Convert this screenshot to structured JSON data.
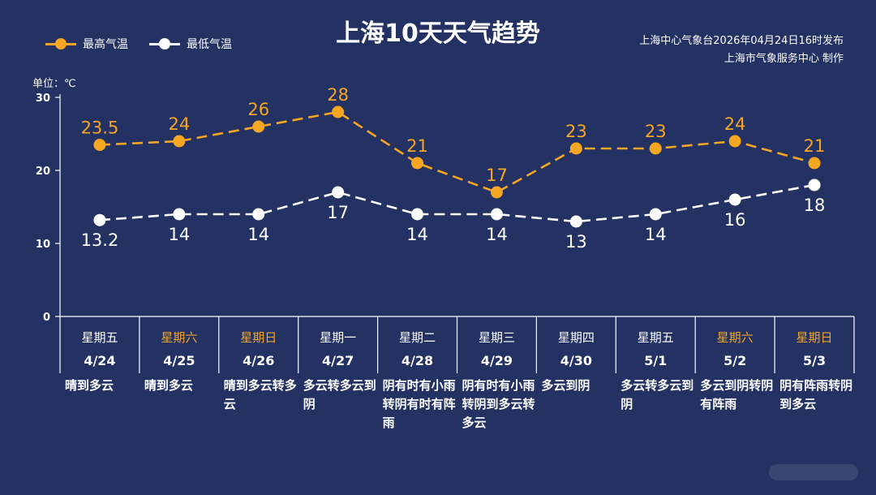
{
  "chart_data": {
    "type": "line",
    "title": "上海10天天气趋势",
    "unit_label": "单位：℃",
    "source_lines": [
      "上海中心气象台2026年04月24日16时发布",
      "上海市气象服务中心  制作"
    ],
    "ylim": [
      0,
      30
    ],
    "yticks": [
      0,
      10,
      20,
      30
    ],
    "weekdays": [
      "星期五",
      "星期六",
      "星期日",
      "星期一",
      "星期二",
      "星期三",
      "星期四",
      "星期五",
      "星期六",
      "星期日"
    ],
    "weekend_flags": [
      false,
      true,
      true,
      false,
      false,
      false,
      false,
      false,
      true,
      true
    ],
    "categories": [
      "4/24",
      "4/25",
      "4/26",
      "4/27",
      "4/28",
      "4/29",
      "4/30",
      "5/1",
      "5/2",
      "5/3"
    ],
    "weather": [
      "晴到多云",
      "晴到多云",
      "晴到多云转多云",
      "多云转多云到阴",
      "阴有时有小雨转阴有时有阵雨",
      "阴有时有小雨转阴到多云转多云",
      "多云到阴",
      "多云转多云到阴",
      "多云到阴转阴有阵雨",
      "阴有阵雨转阴到多云"
    ],
    "series": [
      {
        "name": "最高气温",
        "color": "#f5a623",
        "values": [
          23.5,
          24,
          26,
          28,
          21,
          17,
          23,
          23,
          24,
          21
        ]
      },
      {
        "name": "最低气温",
        "color": "#ffffff",
        "values": [
          13.2,
          14,
          14,
          17,
          14,
          14,
          13,
          14,
          16,
          18
        ]
      }
    ],
    "colors": {
      "background": "#233163",
      "high": "#f5a623",
      "low": "#ffffff",
      "weekend": "#f5a623"
    },
    "grid": false,
    "legend": "top-left"
  }
}
